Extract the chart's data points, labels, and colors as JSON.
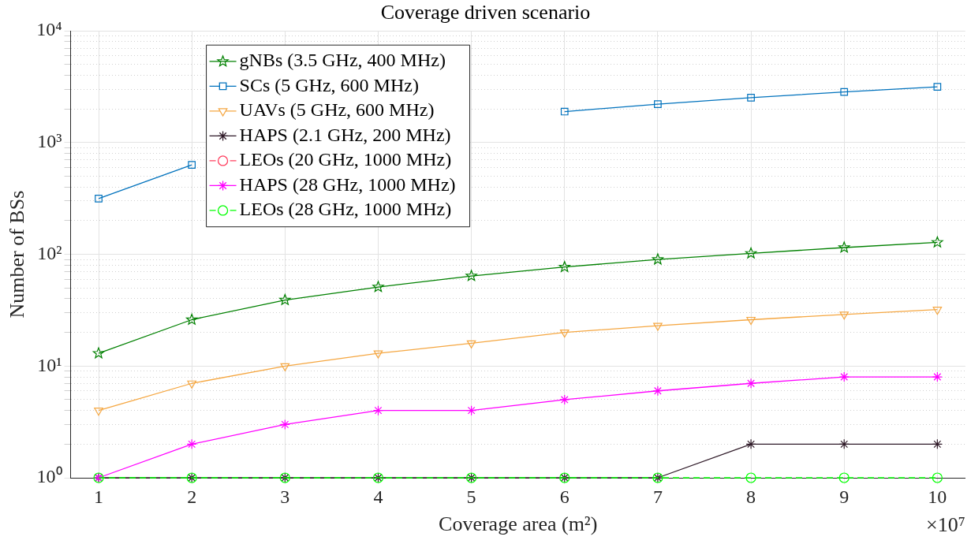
{
  "chart_data": {
    "type": "line",
    "title": "Coverage driven scenario",
    "xlabel": "Coverage area (m²)",
    "ylabel": "Number of BSs",
    "x": [
      1,
      2,
      3,
      4,
      5,
      6,
      7,
      8,
      9,
      10
    ],
    "series": [
      {
        "name": "gNBs (3.5 GHz, 400 MHz)",
        "color": "#008000",
        "marker": "star",
        "line_style": "solid",
        "values": [
          13,
          26,
          39,
          51,
          64,
          77,
          90,
          102,
          115,
          128
        ]
      },
      {
        "name": "SCs (5 GHz, 600 MHz)",
        "color": "#0072bd",
        "marker": "square",
        "line_style": "solid",
        "values": [
          316,
          632,
          null,
          null,
          null,
          1896,
          2212,
          2528,
          2844,
          3160
        ]
      },
      {
        "name": "UAVs (5 GHz, 600 MHz)",
        "color": "#f5a742",
        "marker": "triangle",
        "line_style": "solid",
        "values": [
          4,
          7,
          10,
          13,
          16,
          20,
          23,
          26,
          29,
          32
        ]
      },
      {
        "name": "HAPS (2.1 GHz, 200 MHz)",
        "color": "#2f1a28",
        "marker": "cross",
        "line_style": "solid",
        "values": [
          1,
          1,
          1,
          1,
          1,
          1,
          1,
          2,
          2,
          2
        ]
      },
      {
        "name": "LEOs (20 GHz, 1000 MHz)",
        "color": "#ff3f5f",
        "marker": "circle",
        "line_style": "dashed",
        "values": [
          null,
          null,
          null,
          null,
          null,
          null,
          null,
          null,
          null,
          null
        ]
      },
      {
        "name": "HAPS (28 GHz, 1000 MHz)",
        "color": "#ff00ff",
        "marker": "cross",
        "line_style": "solid",
        "values": [
          1,
          2,
          3,
          4,
          4,
          5,
          6,
          7,
          8,
          8
        ]
      },
      {
        "name": "LEOs (28 GHz, 1000 MHz)",
        "color": "#00ff00",
        "marker": "circle",
        "line_style": "dashed",
        "values": [
          1,
          1,
          1,
          1,
          1,
          1,
          1,
          1,
          1,
          1
        ]
      }
    ],
    "log": "y",
    "xlim": [
      0.7,
      10.3
    ],
    "xticks": [
      1,
      2,
      3,
      4,
      5,
      6,
      7,
      8,
      9,
      10
    ],
    "ylim": [
      1,
      10000
    ],
    "yticks": [
      {
        "value": 1,
        "label": "10⁰"
      },
      {
        "value": 2,
        "label": null
      },
      {
        "value": 3,
        "label": null
      },
      {
        "value": 4,
        "label": null
      },
      {
        "value": 5,
        "label": null
      },
      {
        "value": 6,
        "label": null
      },
      {
        "value": 7,
        "label": null
      },
      {
        "value": 8,
        "label": null
      },
      {
        "value": 9,
        "label": null
      },
      {
        "value": 10,
        "label": "10¹"
      },
      {
        "value": 20,
        "label": null
      },
      {
        "value": 30,
        "label": null
      },
      {
        "value": 40,
        "label": null
      },
      {
        "value": 50,
        "label": null
      },
      {
        "value": 60,
        "label": null
      },
      {
        "value": 70,
        "label": null
      },
      {
        "value": 80,
        "label": null
      },
      {
        "value": 90,
        "label": null
      },
      {
        "value": 100,
        "label": "10²"
      },
      {
        "value": 200,
        "label": null
      },
      {
        "value": 300,
        "label": null
      },
      {
        "value": 400,
        "label": null
      },
      {
        "value": 500,
        "label": null
      },
      {
        "value": 600,
        "label": null
      },
      {
        "value": 700,
        "label": null
      },
      {
        "value": 800,
        "label": null
      },
      {
        "value": 900,
        "label": null
      },
      {
        "value": 1000,
        "label": "10³"
      },
      {
        "value": 2000,
        "label": null
      },
      {
        "value": 3000,
        "label": null
      },
      {
        "value": 4000,
        "label": null
      },
      {
        "value": 5000,
        "label": null
      },
      {
        "value": 6000,
        "label": null
      },
      {
        "value": 7000,
        "label": null
      },
      {
        "value": 8000,
        "label": null
      },
      {
        "value": 9000,
        "label": null
      },
      {
        "value": 10000,
        "label": "10⁴"
      }
    ],
    "grid": true,
    "legend": "top left",
    "annotations": [
      "×10⁷"
    ]
  }
}
